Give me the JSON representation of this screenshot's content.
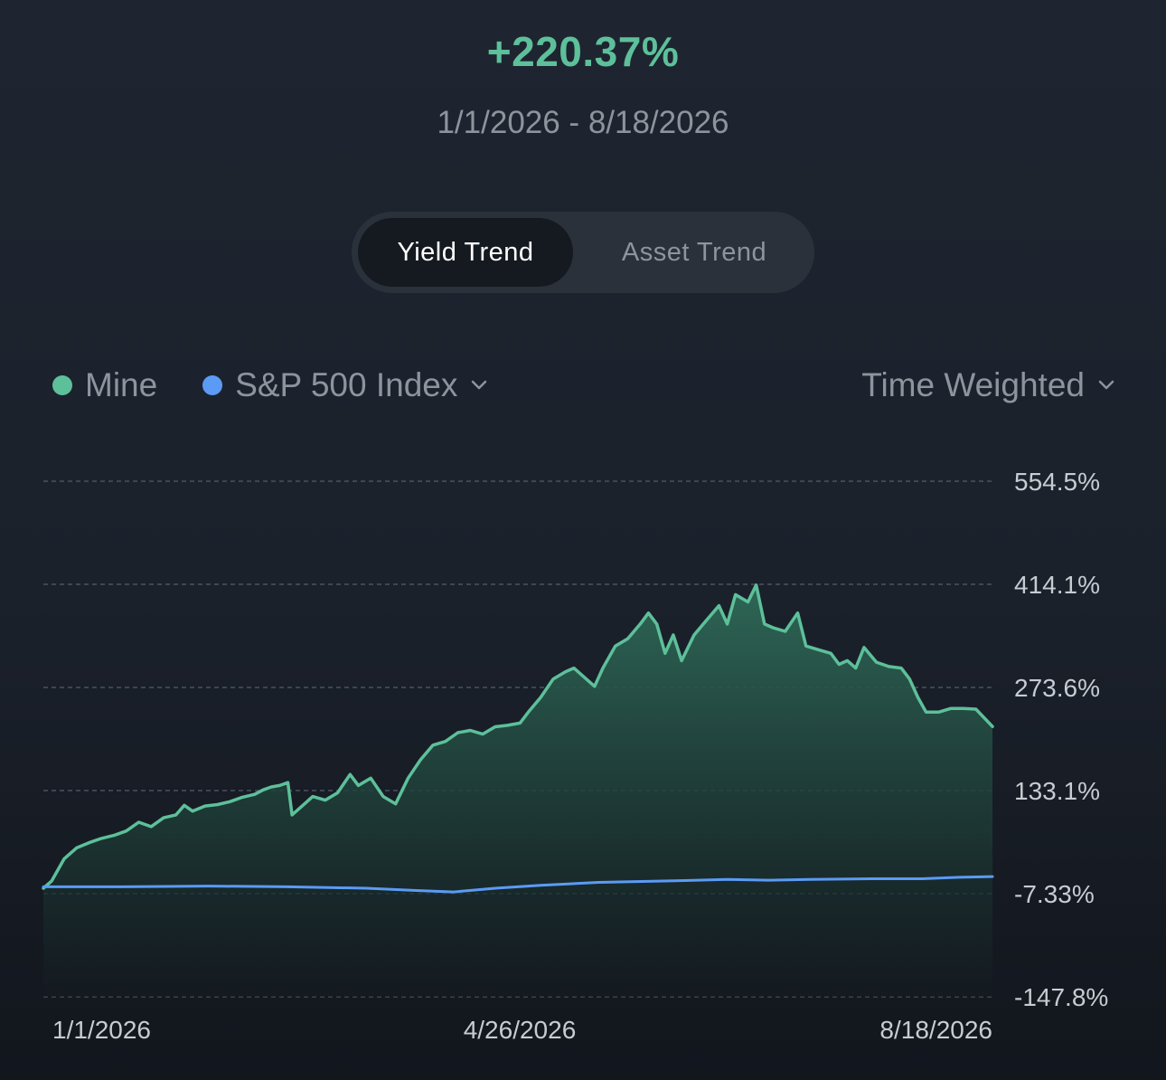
{
  "header": {
    "return_value": "+220.37%",
    "date_range": "1/1/2026 - 8/18/2026"
  },
  "tabs": [
    {
      "label": "Yield Trend",
      "active": true
    },
    {
      "label": "Asset Trend",
      "active": false
    }
  ],
  "legend": {
    "mine": {
      "label": "Mine",
      "color": "#5dc09a"
    },
    "benchmark": {
      "label": "S&P 500 Index",
      "color": "#5b9bf5",
      "icon": "chevron-down-icon"
    }
  },
  "method": {
    "label": "Time Weighted",
    "icon": "chevron-down-icon"
  },
  "chart_data": {
    "type": "area",
    "y_ticks": [
      "554.5%",
      "414.1%",
      "273.6%",
      "133.1%",
      "-7.33%",
      "-147.8%"
    ],
    "y_tick_values": [
      554.5,
      414.1,
      273.6,
      133.1,
      -7.33,
      -147.8
    ],
    "ylim": [
      -147.8,
      554.5
    ],
    "x_ticks": [
      "1/1/2026",
      "4/26/2026",
      "8/18/2026"
    ],
    "grid": true,
    "legend_position": "top-left",
    "series": [
      {
        "name": "Mine",
        "color": "#5dc09a",
        "points": [
          [
            "2026-01-01",
            0
          ],
          [
            "2026-01-03",
            10
          ],
          [
            "2026-01-06",
            40
          ],
          [
            "2026-01-09",
            55
          ],
          [
            "2026-01-12",
            62
          ],
          [
            "2026-01-15",
            68
          ],
          [
            "2026-01-18",
            72
          ],
          [
            "2026-01-21",
            78
          ],
          [
            "2026-01-24",
            90
          ],
          [
            "2026-01-27",
            84
          ],
          [
            "2026-01-30",
            96
          ],
          [
            "2026-02-02",
            100
          ],
          [
            "2026-02-04",
            113
          ],
          [
            "2026-02-06",
            105
          ],
          [
            "2026-02-09",
            112
          ],
          [
            "2026-02-12",
            114
          ],
          [
            "2026-02-15",
            118
          ],
          [
            "2026-02-18",
            124
          ],
          [
            "2026-02-21",
            128
          ],
          [
            "2026-02-23",
            134
          ],
          [
            "2026-02-25",
            138
          ],
          [
            "2026-02-27",
            140
          ],
          [
            "2026-03-01",
            144
          ],
          [
            "2026-03-02",
            100
          ],
          [
            "2026-03-04",
            110
          ],
          [
            "2026-03-07",
            125
          ],
          [
            "2026-03-10",
            120
          ],
          [
            "2026-03-13",
            130
          ],
          [
            "2026-03-16",
            155
          ],
          [
            "2026-03-18",
            140
          ],
          [
            "2026-03-21",
            150
          ],
          [
            "2026-03-24",
            125
          ],
          [
            "2026-03-27",
            115
          ],
          [
            "2026-03-30",
            150
          ],
          [
            "2026-04-02",
            175
          ],
          [
            "2026-04-05",
            195
          ],
          [
            "2026-04-08",
            200
          ],
          [
            "2026-04-11",
            212
          ],
          [
            "2026-04-14",
            215
          ],
          [
            "2026-04-17",
            210
          ],
          [
            "2026-04-20",
            220
          ],
          [
            "2026-04-23",
            222
          ],
          [
            "2026-04-26",
            225
          ],
          [
            "2026-04-28",
            240
          ],
          [
            "2026-05-01",
            260
          ],
          [
            "2026-05-04",
            285
          ],
          [
            "2026-05-07",
            295
          ],
          [
            "2026-05-09",
            300
          ],
          [
            "2026-05-11",
            290
          ],
          [
            "2026-05-14",
            275
          ],
          [
            "2026-05-16",
            300
          ],
          [
            "2026-05-19",
            330
          ],
          [
            "2026-05-22",
            340
          ],
          [
            "2026-05-25",
            360
          ],
          [
            "2026-05-27",
            375
          ],
          [
            "2026-05-29",
            360
          ],
          [
            "2026-05-31",
            320
          ],
          [
            "2026-06-02",
            345
          ],
          [
            "2026-06-04",
            310
          ],
          [
            "2026-06-07",
            345
          ],
          [
            "2026-06-10",
            365
          ],
          [
            "2026-06-13",
            385
          ],
          [
            "2026-06-15",
            360
          ],
          [
            "2026-06-17",
            400
          ],
          [
            "2026-06-20",
            390
          ],
          [
            "2026-06-22",
            413
          ],
          [
            "2026-06-24",
            360
          ],
          [
            "2026-06-26",
            355
          ],
          [
            "2026-06-29",
            350
          ],
          [
            "2026-07-02",
            375
          ],
          [
            "2026-07-04",
            330
          ],
          [
            "2026-07-07",
            325
          ],
          [
            "2026-07-10",
            320
          ],
          [
            "2026-07-12",
            305
          ],
          [
            "2026-07-14",
            310
          ],
          [
            "2026-07-16",
            300
          ],
          [
            "2026-07-18",
            328
          ],
          [
            "2026-07-21",
            308
          ],
          [
            "2026-07-24",
            302
          ],
          [
            "2026-07-27",
            300
          ],
          [
            "2026-07-29",
            285
          ],
          [
            "2026-07-31",
            260
          ],
          [
            "2026-08-02",
            240
          ],
          [
            "2026-08-05",
            240
          ],
          [
            "2026-08-08",
            245
          ],
          [
            "2026-08-11",
            245
          ],
          [
            "2026-08-14",
            244
          ],
          [
            "2026-08-18",
            220.37
          ]
        ]
      },
      {
        "name": "S&P 500 Index",
        "color": "#5b9bf5",
        "points": [
          [
            "2026-01-01",
            2
          ],
          [
            "2026-01-20",
            2
          ],
          [
            "2026-02-10",
            3
          ],
          [
            "2026-03-01",
            2
          ],
          [
            "2026-03-20",
            0
          ],
          [
            "2026-04-01",
            -3
          ],
          [
            "2026-04-10",
            -5
          ],
          [
            "2026-04-20",
            0
          ],
          [
            "2026-05-01",
            4
          ],
          [
            "2026-05-15",
            8
          ],
          [
            "2026-06-01",
            10
          ],
          [
            "2026-06-15",
            12
          ],
          [
            "2026-06-25",
            11
          ],
          [
            "2026-07-05",
            12
          ],
          [
            "2026-07-20",
            13
          ],
          [
            "2026-08-01",
            13
          ],
          [
            "2026-08-10",
            15
          ],
          [
            "2026-08-18",
            16
          ]
        ]
      }
    ]
  }
}
